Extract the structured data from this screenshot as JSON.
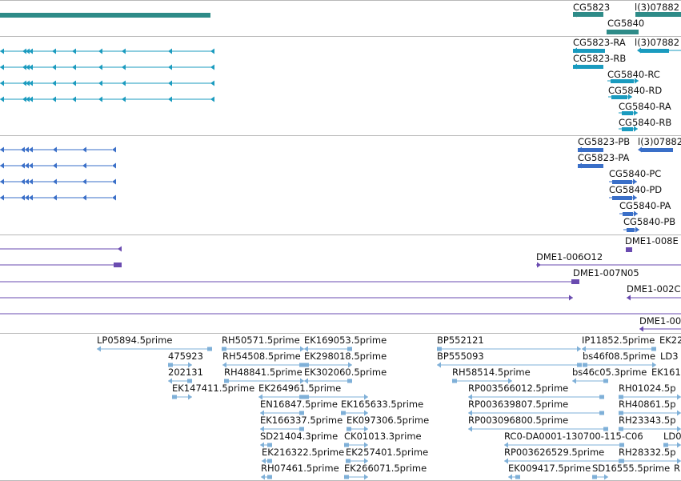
{
  "tracks": [
    {
      "name": "gene-track"
    },
    {
      "name": "transcript-track"
    },
    {
      "name": "protein-track"
    },
    {
      "name": "clone-track"
    },
    {
      "name": "est-track"
    }
  ],
  "colors": {
    "gene": "#2e8b88",
    "transcript": "#1a9bbf",
    "protein": "#3a6fc8",
    "clone": "#6a4bb0",
    "est": "#7fb0d8",
    "separator": "#b8b8b8"
  },
  "labels": {
    "gene_cg5823": "CG5823",
    "gene_l3_07882": "l(3)07882",
    "gene_cg5840": "CG5840",
    "tx_cg5823_ra": "CG5823-RA",
    "tx_l3_07882": "l(3)07882",
    "tx_cg5823_rb": "CG5823-RB",
    "tx_cg5840_rc": "CG5840-RC",
    "tx_cg5840_rd": "CG5840-RD",
    "tx_cg5840_ra": "CG5840-RA",
    "tx_cg5840_rb": "CG5840-RB",
    "pr_cg5823_pb": "CG5823-PB",
    "pr_l3_07882": "l(3)07882",
    "pr_cg5823_pa": "CG5823-PA",
    "pr_cg5840_pc": "CG5840-PC",
    "pr_cg5840_pd": "CG5840-PD",
    "pr_cg5840_pa": "CG5840-PA",
    "pr_cg5840_pb": "CG5840-PB",
    "cl_dme1_008": "DME1-008E",
    "cl_dme1_006o12": "DME1-006O12",
    "cl_dme1_007n05": "DME1-007N05",
    "cl_dme1_002": "DME1-002C",
    "cl_dme1_00": "DME1-00",
    "est_lp05894": "LP05894.5prime",
    "est_rh50571": "RH50571.5prime",
    "est_ek169053": "EK169053.5prime",
    "est_bp552121": "BP552121",
    "est_ip11852": "IP11852.5prime",
    "est_ek22": "EK22",
    "est_475923": "475923",
    "est_rh54508": "RH54508.5prime",
    "est_ek298018": "EK298018.5prime",
    "est_bp555093": "BP555093",
    "est_bs46f08": "bs46f08.5prime",
    "est_ld3": "LD3",
    "est_202131": "202131",
    "est_rh48841": "RH48841.5prime",
    "est_ek302060": "EK302060.5prime",
    "est_rh58514": "RH58514.5prime",
    "est_bs46c05": "bs46c05.3prime",
    "est_ek161": "EK161",
    "est_ek147411": "EK147411.5prime",
    "est_ek264961": "EK264961.5prime",
    "est_rp003566012": "RP003566012.5prime",
    "est_rh01024": "RH01024.5p",
    "est_en16847": "EN16847.5prime",
    "est_ek165633": "EK165633.5prime",
    "est_rp003639807": "RP003639807.5prime",
    "est_rh40861": "RH40861.5p",
    "est_ek166337": "EK166337.5prime",
    "est_ek097306": "EK097306.5prime",
    "est_rp003096800": "RP003096800.5prime",
    "est_rh23343": "RH23343.5p",
    "est_sd21404": "SD21404.3prime",
    "est_ck01013": "CK01013.3prime",
    "est_rc0": "RC0-DA0001-130700-115-C06",
    "est_ld0": "LD0",
    "est_ek216322": "EK216322.5prime",
    "est_ek257401": "EK257401.5prime",
    "est_rp003626529": "RP003626529.5prime",
    "est_rh28332": "RH28332.5p",
    "est_rh07461": "RH07461.5prime",
    "est_ek266071": "EK266071.5prime",
    "est_ek009417": "EK009417.5prime",
    "est_sd16555": "SD16555.5prime",
    "est_r": "R"
  }
}
